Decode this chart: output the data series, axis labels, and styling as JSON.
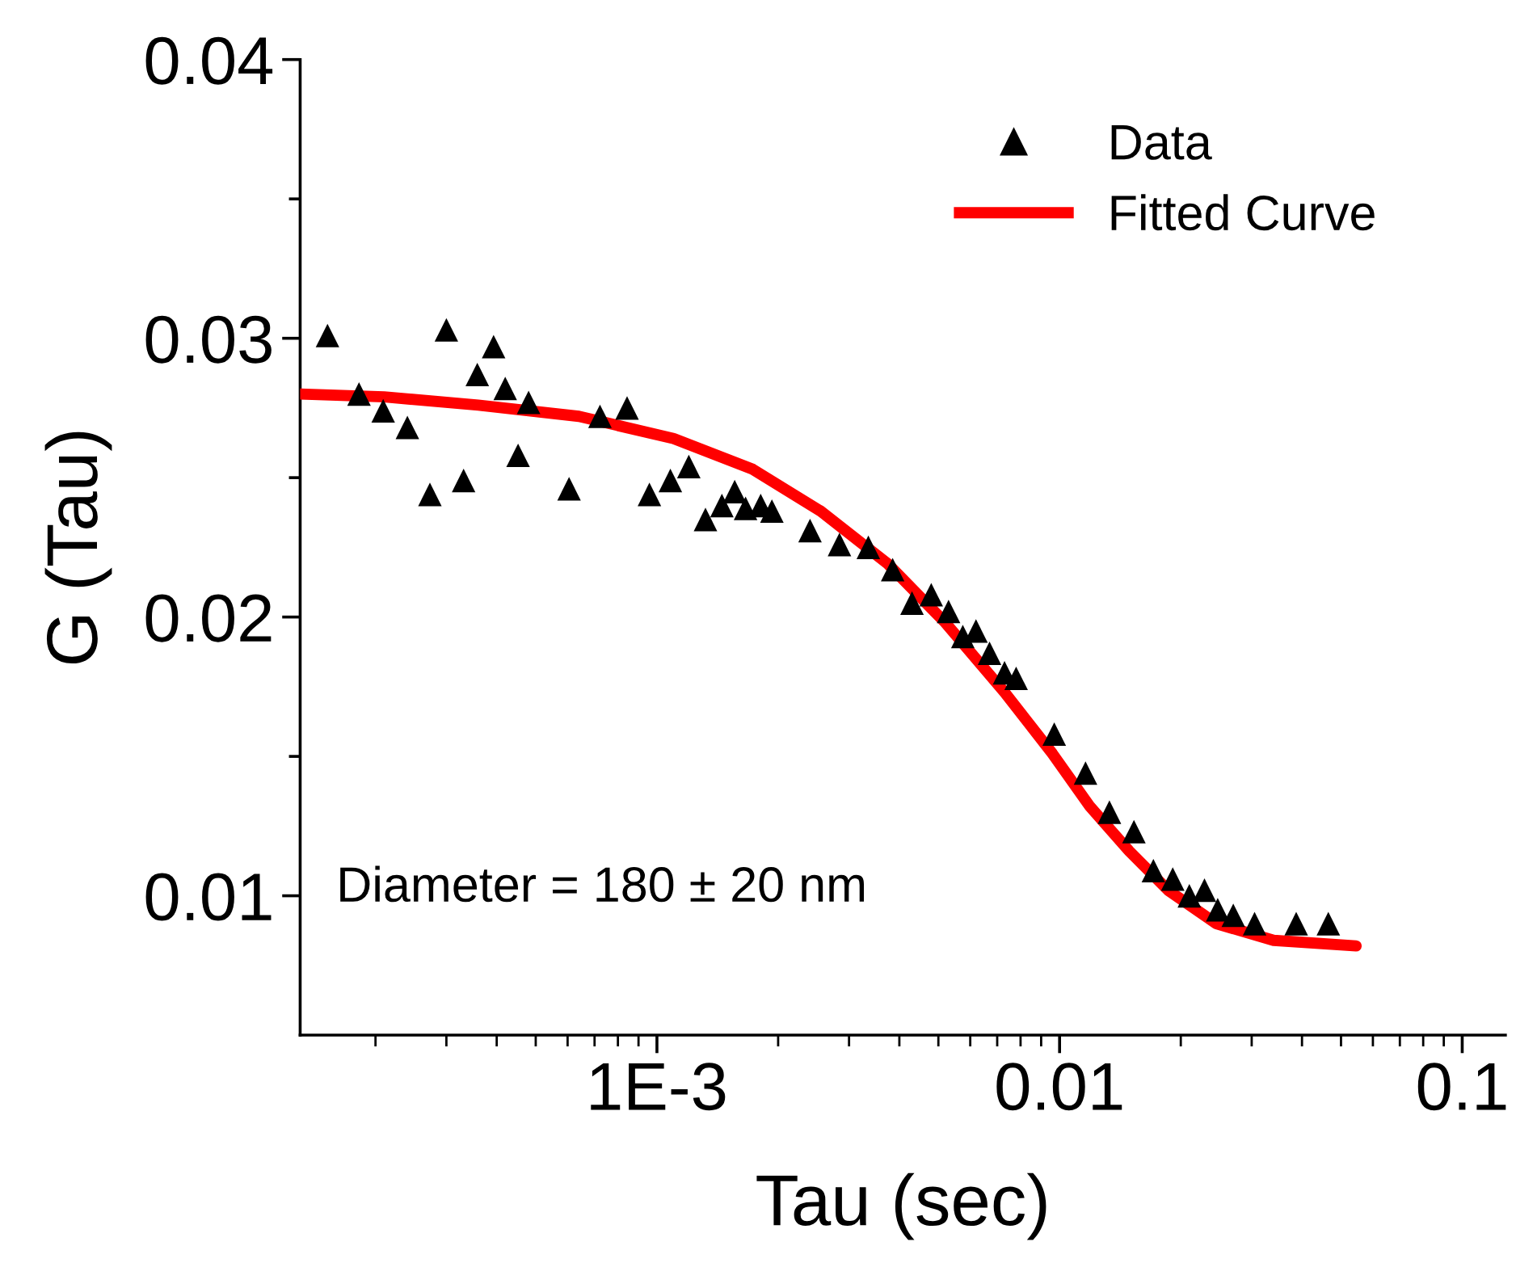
{
  "chart_data": {
    "type": "scatter",
    "xlabel": "Tau (sec)",
    "ylabel": "G (Tau)",
    "log": "x",
    "xlim": [
      0.00013,
      0.128
    ],
    "xticks": [
      {
        "value": 0.001,
        "label": "1E-3"
      },
      0.01,
      0.1
    ],
    "ylim": [
      0.005,
      0.04
    ],
    "yticks": [
      0.01,
      {
        "value": 0.015,
        "label": null
      },
      0.02,
      {
        "value": 0.025,
        "label": null
      },
      0.03,
      {
        "value": 0.035,
        "label": null
      },
      0.04
    ],
    "grid": false,
    "legend": "top right",
    "annotations": [
      "Diameter = 180 ± 20 nm"
    ],
    "series": [
      {
        "name": "Data",
        "marker": "triangle",
        "color": "#000000",
        "x": [
          0.000152,
          0.000182,
          0.000209,
          0.00024,
          0.000273,
          0.0003,
          0.000331,
          0.000358,
          0.000393,
          0.00042,
          0.000452,
          0.00048,
          0.000605,
          0.000722,
          0.000843,
          0.000958,
          0.00108,
          0.0012,
          0.00132,
          0.00145,
          0.00156,
          0.00166,
          0.00181,
          0.00193,
          0.0024,
          0.00284,
          0.00335,
          0.00385,
          0.0043,
          0.0048,
          0.0053,
          0.00575,
          0.0062,
          0.0067,
          0.0073,
          0.0078,
          0.0097,
          0.0116,
          0.0133,
          0.0153,
          0.0171,
          0.0191,
          0.021,
          0.0229,
          0.0247,
          0.027,
          0.0305,
          0.0387,
          0.0465
        ],
        "values": [
          0.0301,
          0.028,
          0.0274,
          0.0268,
          0.0244,
          0.0303,
          0.0249,
          0.0287,
          0.0297,
          0.0282,
          0.0258,
          0.0277,
          0.0246,
          0.0272,
          0.0275,
          0.0244,
          0.0249,
          0.0254,
          0.0235,
          0.024,
          0.0245,
          0.0239,
          0.024,
          0.0238,
          0.0231,
          0.0226,
          0.0225,
          0.0217,
          0.0205,
          0.0208,
          0.0202,
          0.0193,
          0.0195,
          0.0187,
          0.018,
          0.0178,
          0.0158,
          0.0144,
          0.013,
          0.0123,
          0.0109,
          0.0106,
          0.01,
          0.0102,
          0.0095,
          0.0093,
          0.009,
          0.009,
          0.009
        ]
      },
      {
        "name": "Fitted Curve",
        "type": "line",
        "marker": "none",
        "line_style": "solid",
        "color": "#ff0000",
        "x": [
          0.00013,
          0.00021,
          0.00036,
          0.00064,
          0.0011,
          0.00173,
          0.00255,
          0.00375,
          0.0052,
          0.0073,
          0.0096,
          0.0119,
          0.0149,
          0.0186,
          0.0245,
          0.034,
          0.0545
        ],
        "values": [
          0.028,
          0.0279,
          0.0276,
          0.0272,
          0.0264,
          0.0253,
          0.0238,
          0.0219,
          0.0198,
          0.0173,
          0.0151,
          0.0132,
          0.0116,
          0.0102,
          0.009,
          0.0084,
          0.0082
        ]
      }
    ]
  }
}
